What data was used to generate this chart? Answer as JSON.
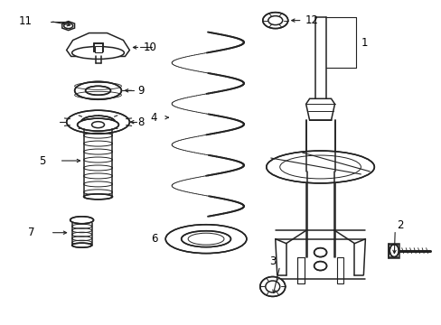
{
  "bg_color": "#ffffff",
  "line_color": "#222222",
  "label_color": "#000000",
  "figsize": [
    4.89,
    3.6
  ],
  "dpi": 100,
  "font_size": 8.5,
  "lw": 1.1
}
